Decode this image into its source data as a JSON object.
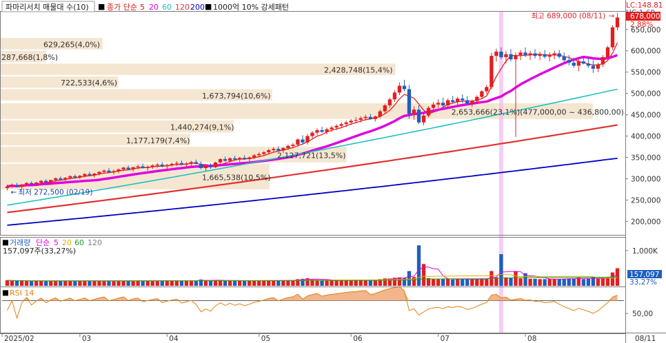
{
  "header": {
    "title": "파마리서치 매물대 수(10)",
    "ma_label": "종가 단순",
    "ma_periods": [
      "5",
      "20",
      "60",
      "120",
      "200"
    ],
    "ma_colors": [
      "#e01010",
      "#e000e0",
      "#20c0c0",
      "#e03030",
      "#0000c0"
    ],
    "extra_label": "1000억 10% 강세패턴"
  },
  "top_right": {
    "lc_text": "LC:148.81",
    "hc_text": "HC:1.60",
    "price_box": "678,000",
    "pct_text": "2.88%"
  },
  "chart_data": [
    {
      "type": "candlestick",
      "panel": "price",
      "ylim": [
        170000,
        690000
      ],
      "y_ticks": [
        200000,
        250000,
        300000,
        350000,
        400000,
        450000,
        500000,
        550000,
        600000,
        650000
      ],
      "y_tick_labels": [
        "200,000",
        "250,000",
        "300,000",
        "350,000",
        "400,000",
        "450,000",
        "500,000",
        "550,000",
        "600,000",
        "650,000"
      ],
      "x_ticks": [
        "2025/02",
        "03",
        "04",
        "05",
        "06",
        "07",
        "08"
      ],
      "x_end_label": "08/11",
      "annotations": [
        {
          "text": "최고 689,000 (08/11)",
          "x": "08/11",
          "y": 689000
        },
        {
          "text": "최저 272,500 (02/19)",
          "x": "02/19",
          "y": 272500
        },
        {
          "text": "2,653,666(23,1%)(477,000,00 ~ 436,800,00)",
          "y": 456900
        }
      ],
      "volume_profile": [
        {
          "label": "629,265(4,0%)",
          "price_low": 600000,
          "price_high": 630000,
          "share_pct": 4.0
        },
        {
          "label": "287,668(1,8%)",
          "price_low": 570000,
          "price_high": 600000,
          "share_pct": 1.8
        },
        {
          "label": "2,428,748(15,4%)",
          "price_low": 540000,
          "price_high": 570000,
          "share_pct": 15.4
        },
        {
          "label": "722,533(4,6%)",
          "price_low": 510000,
          "price_high": 540000,
          "share_pct": 4.6
        },
        {
          "label": "1,673,794(10,6%)",
          "price_low": 480000,
          "price_high": 510000,
          "share_pct": 10.6
        },
        {
          "label": "2,653,666(23,1%)",
          "price_low": 437000,
          "price_high": 477000,
          "share_pct": 23.1
        },
        {
          "label": "1,440,274(9,1%)",
          "price_low": 405000,
          "price_high": 437000,
          "share_pct": 9.1
        },
        {
          "label": "1,177,179(7,4%)",
          "price_low": 375000,
          "price_high": 405000,
          "share_pct": 7.4
        },
        {
          "label": "2,127,721(13,5%)",
          "price_low": 335000,
          "price_high": 375000,
          "share_pct": 13.5
        },
        {
          "label": "1,665,538(10,5%)",
          "price_low": 272000,
          "price_high": 335000,
          "share_pct": 10.5
        }
      ],
      "candles": [
        [
          278000,
          286000,
          272500,
          282000
        ],
        [
          282000,
          289000,
          278000,
          285000
        ],
        [
          285000,
          290000,
          280000,
          281000
        ],
        [
          281000,
          288000,
          276000,
          286000
        ],
        [
          286000,
          292000,
          283000,
          290000
        ],
        [
          290000,
          294000,
          285000,
          287000
        ],
        [
          287000,
          293000,
          283000,
          291000
        ],
        [
          291000,
          297000,
          288000,
          295000
        ],
        [
          295000,
          299000,
          290000,
          292000
        ],
        [
          292000,
          298000,
          288000,
          297000
        ],
        [
          297000,
          303000,
          293000,
          301000
        ],
        [
          301000,
          305000,
          296000,
          298000
        ],
        [
          298000,
          304000,
          294000,
          302000
        ],
        [
          302000,
          308000,
          298000,
          306000
        ],
        [
          306000,
          310000,
          300000,
          303000
        ],
        [
          303000,
          309000,
          299000,
          307000
        ],
        [
          307000,
          313000,
          303000,
          311000
        ],
        [
          311000,
          316000,
          306000,
          308000
        ],
        [
          308000,
          314000,
          303000,
          312000
        ],
        [
          312000,
          318000,
          308000,
          316000
        ],
        [
          316000,
          322000,
          312000,
          319000
        ],
        [
          319000,
          325000,
          314000,
          315000
        ],
        [
          315000,
          321000,
          310000,
          318000
        ],
        [
          318000,
          324000,
          313000,
          322000
        ],
        [
          322000,
          328000,
          318000,
          326000
        ],
        [
          326000,
          331000,
          320000,
          322000
        ],
        [
          322000,
          328000,
          317000,
          327000
        ],
        [
          327000,
          333000,
          322000,
          329000
        ],
        [
          329000,
          335000,
          324000,
          325000
        ],
        [
          325000,
          331000,
          319000,
          328000
        ],
        [
          328000,
          334000,
          323000,
          331000
        ],
        [
          331000,
          337000,
          326000,
          333000
        ],
        [
          333000,
          339000,
          327000,
          329000
        ],
        [
          329000,
          335000,
          323000,
          332000
        ],
        [
          332000,
          338000,
          328000,
          335000
        ],
        [
          335000,
          341000,
          330000,
          337000
        ],
        [
          337000,
          343000,
          331000,
          333000
        ],
        [
          333000,
          339000,
          327000,
          336000
        ],
        [
          336000,
          342000,
          331000,
          339000
        ],
        [
          339000,
          345000,
          334000,
          335000
        ],
        [
          335000,
          340000,
          322000,
          325000
        ],
        [
          325000,
          332000,
          318000,
          330000
        ],
        [
          330000,
          336000,
          323000,
          327000
        ],
        [
          327000,
          340000,
          325000,
          338000
        ],
        [
          338000,
          348000,
          335000,
          346000
        ],
        [
          346000,
          352000,
          340000,
          342000
        ],
        [
          342000,
          350000,
          338000,
          348000
        ],
        [
          348000,
          354000,
          343000,
          345000
        ],
        [
          345000,
          351000,
          340000,
          349000
        ],
        [
          349000,
          355000,
          344000,
          346000
        ],
        [
          346000,
          352000,
          341000,
          350000
        ],
        [
          350000,
          358000,
          346000,
          355000
        ],
        [
          355000,
          362000,
          350000,
          358000
        ],
        [
          358000,
          365000,
          353000,
          362000
        ],
        [
          362000,
          370000,
          357000,
          367000
        ],
        [
          367000,
          374000,
          362000,
          370000
        ],
        [
          370000,
          376000,
          364000,
          366000
        ],
        [
          366000,
          374000,
          360000,
          372000
        ],
        [
          372000,
          380000,
          367000,
          377000
        ],
        [
          377000,
          384000,
          371000,
          380000
        ],
        [
          380000,
          395000,
          375000,
          392000
        ],
        [
          392000,
          402000,
          380000,
          385000
        ],
        [
          385000,
          405000,
          380000,
          400000
        ],
        [
          400000,
          412000,
          394000,
          408000
        ],
        [
          408000,
          418000,
          402000,
          414000
        ],
        [
          414000,
          422000,
          407000,
          410000
        ],
        [
          410000,
          420000,
          404000,
          416000
        ],
        [
          416000,
          424000,
          410000,
          420000
        ],
        [
          420000,
          428000,
          414000,
          424000
        ],
        [
          424000,
          432000,
          418000,
          428000
        ],
        [
          428000,
          436000,
          421000,
          432000
        ],
        [
          432000,
          440000,
          426000,
          436000
        ],
        [
          436000,
          444000,
          430000,
          438000
        ],
        [
          438000,
          446000,
          432000,
          442000
        ],
        [
          442000,
          450000,
          436000,
          445000
        ],
        [
          445000,
          452000,
          438000,
          440000
        ],
        [
          440000,
          448000,
          434000,
          446000
        ],
        [
          446000,
          462000,
          442000,
          458000
        ],
        [
          458000,
          476000,
          452000,
          472000
        ],
        [
          472000,
          490000,
          466000,
          486000
        ],
        [
          486000,
          508000,
          480000,
          502000
        ],
        [
          502000,
          526000,
          496000,
          518000
        ],
        [
          518000,
          532000,
          505000,
          510000
        ],
        [
          510000,
          520000,
          440000,
          452000
        ],
        [
          452000,
          470000,
          438000,
          462000
        ],
        [
          462000,
          472000,
          428000,
          432000
        ],
        [
          432000,
          452000,
          425000,
          448000
        ],
        [
          448000,
          470000,
          444000,
          466000
        ],
        [
          466000,
          480000,
          458000,
          474000
        ],
        [
          474000,
          486000,
          466000,
          478000
        ],
        [
          478000,
          490000,
          468000,
          472000
        ],
        [
          472000,
          488000,
          466000,
          484000
        ],
        [
          484000,
          494000,
          476000,
          480000
        ],
        [
          480000,
          492000,
          472000,
          488000
        ],
        [
          488000,
          498000,
          478000,
          484000
        ],
        [
          484000,
          494000,
          474000,
          476000
        ],
        [
          476000,
          486000,
          468000,
          482000
        ],
        [
          482000,
          496000,
          476000,
          492000
        ],
        [
          492000,
          508000,
          486000,
          505000
        ],
        [
          505000,
          520000,
          498000,
          515000
        ],
        [
          515000,
          595000,
          510000,
          588000
        ],
        [
          588000,
          605000,
          575000,
          598000
        ],
        [
          598000,
          608000,
          580000,
          585000
        ],
        [
          585000,
          600000,
          570000,
          592000
        ],
        [
          592000,
          604000,
          575000,
          580000
        ],
        [
          580000,
          596000,
          398000,
          590000
        ],
        [
          590000,
          602000,
          578000,
          596000
        ],
        [
          596000,
          608000,
          585000,
          590000
        ],
        [
          590000,
          600000,
          578000,
          594000
        ],
        [
          594000,
          604000,
          582000,
          588000
        ],
        [
          588000,
          598000,
          578000,
          592000
        ],
        [
          592000,
          602000,
          582000,
          586000
        ],
        [
          586000,
          596000,
          575000,
          590000
        ],
        [
          590000,
          600000,
          580000,
          594000
        ],
        [
          594000,
          602000,
          582000,
          586000
        ],
        [
          586000,
          596000,
          574000,
          578000
        ],
        [
          578000,
          590000,
          566000,
          572000
        ],
        [
          572000,
          584000,
          560000,
          565000
        ],
        [
          565000,
          580000,
          552000,
          575000
        ],
        [
          575000,
          588000,
          568000,
          570000
        ],
        [
          570000,
          582000,
          560000,
          565000
        ],
        [
          565000,
          578000,
          548000,
          558000
        ],
        [
          558000,
          572000,
          550000,
          568000
        ],
        [
          568000,
          590000,
          562000,
          585000
        ],
        [
          585000,
          612000,
          580000,
          608000
        ],
        [
          608000,
          660000,
          602000,
          655000
        ],
        [
          655000,
          689000,
          648000,
          678000
        ]
      ],
      "ma_series_colors": [
        "#e01010",
        "#e000e0",
        "#20c0c0",
        "#e03030",
        "#0000c0"
      ]
    },
    {
      "type": "bar",
      "panel": "volume",
      "header_label": "거래량",
      "ma_label": "단순",
      "ma_periods": [
        "5",
        "20",
        "60",
        "120"
      ],
      "ma_colors": [
        "#e000e0",
        "#e0b000",
        "#20a020",
        "#808080"
      ],
      "current_label": "157,097주(33,27%)",
      "y_ticks": [
        1000000
      ],
      "y_tick_labels": [
        "1,000K"
      ],
      "ylim": [
        0,
        1350000
      ],
      "right_value": "157,097",
      "right_pct": "33,27%"
    },
    {
      "type": "line",
      "panel": "rsi",
      "header_label": "RSI 14",
      "y_ticks": [
        50
      ],
      "y_tick_labels": [
        "50,00"
      ],
      "ylim": [
        20,
        90
      ],
      "overbought": 70,
      "oversold": 30
    }
  ]
}
